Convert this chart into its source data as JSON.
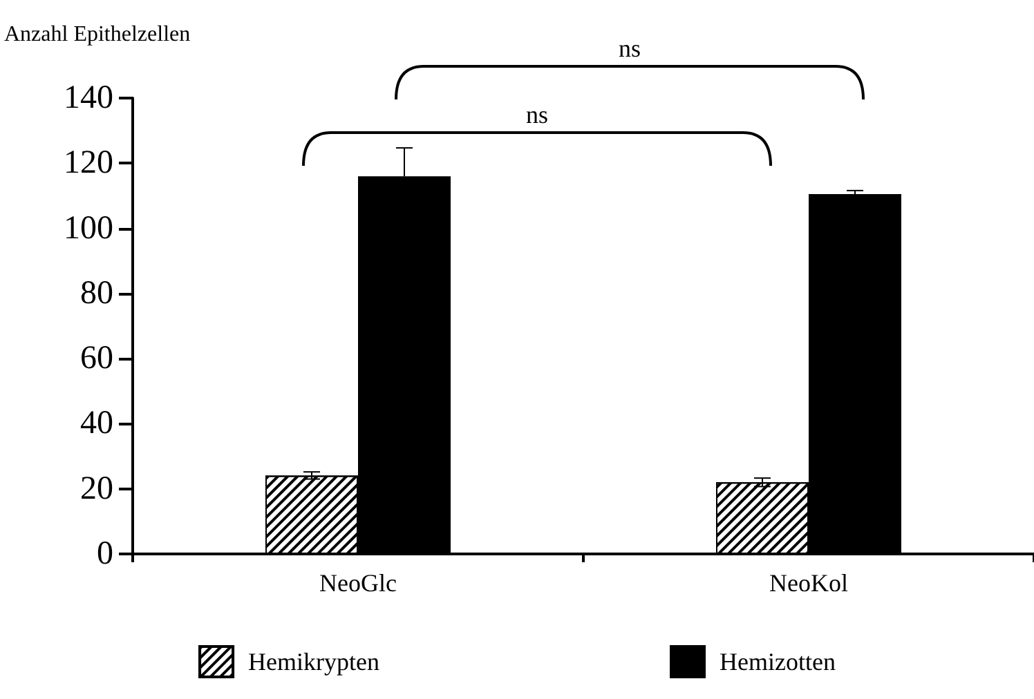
{
  "chart_data": {
    "type": "bar",
    "ylabel": "Anzahl Epithelzellen",
    "categories": [
      "NeoGlc",
      "NeoKol"
    ],
    "series": [
      {
        "name": "Hemikrypten",
        "color": "#ffffff",
        "values": [
          24.1,
          22.0
        ],
        "errors": [
          1.1,
          1.3
        ]
      },
      {
        "name": "Hemizotten",
        "color": "#000000",
        "values": [
          116.0,
          110.5
        ],
        "errors": [
          8.7,
          1.1
        ]
      }
    ],
    "ylim": [
      0,
      140
    ],
    "yticks": [
      0,
      20,
      40,
      60,
      80,
      100,
      120,
      140
    ],
    "grid": false,
    "legend": "bottom",
    "annotations": [
      "ns",
      "ns"
    ]
  }
}
